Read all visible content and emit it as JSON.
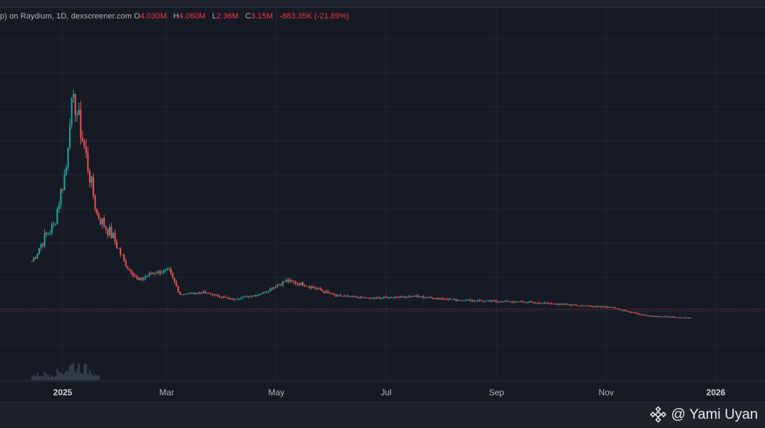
{
  "legend": {
    "symbol": "p) on Raydium, 1D, dexscreener.com",
    "o_label": "O",
    "o_value": "4.030M",
    "h_label": "H",
    "h_value": "4.060M",
    "l_label": "L",
    "l_value": "2.36M",
    "c_label": "C",
    "c_value": "3.15M",
    "change": "-883.35K (-21.89%)"
  },
  "time_axis": {
    "ticks": [
      "2025",
      "Mar",
      "May",
      "Jul",
      "Sep",
      "Nov",
      "2026"
    ]
  },
  "watermark": {
    "text": "@ Yami Uyan",
    "icon": "binance-logo-icon"
  },
  "colors": {
    "up": "#26a69a",
    "down": "#ef5350",
    "background": "#161a25",
    "grid": "#222632",
    "price_line": "#f23645"
  },
  "chart_data": {
    "type": "candlestick",
    "interval": "1D",
    "x_axis": "date",
    "y_axis_labels_visible": false,
    "grid": true,
    "last_price_line": true,
    "key_points": [
      {
        "date": "2024-12-15",
        "value": 2.0
      },
      {
        "date": "2024-12-22",
        "value": 2.6
      },
      {
        "date": "2024-12-27",
        "value": 2.9
      },
      {
        "date": "2025-01-03",
        "value": 4.4
      },
      {
        "date": "2025-01-05",
        "value": 5.8
      },
      {
        "date": "2025-01-08",
        "value": 6.0
      },
      {
        "date": "2025-01-13",
        "value": 4.9
      },
      {
        "date": "2025-01-20",
        "value": 3.2
      },
      {
        "date": "2025-01-29",
        "value": 2.6
      },
      {
        "date": "2025-02-05",
        "value": 1.9
      },
      {
        "date": "2025-02-12",
        "value": 1.5
      },
      {
        "date": "2025-02-20",
        "value": 1.7
      },
      {
        "date": "2025-03-01",
        "value": 1.75
      },
      {
        "date": "2025-03-07",
        "value": 1.15
      },
      {
        "date": "2025-03-20",
        "value": 1.2
      },
      {
        "date": "2025-04-05",
        "value": 1.02
      },
      {
        "date": "2025-04-20",
        "value": 1.15
      },
      {
        "date": "2025-05-05",
        "value": 1.5
      },
      {
        "date": "2025-05-15",
        "value": 1.4
      },
      {
        "date": "2025-06-01",
        "value": 1.12
      },
      {
        "date": "2025-06-20",
        "value": 1.05
      },
      {
        "date": "2025-07-15",
        "value": 1.1
      },
      {
        "date": "2025-08-10",
        "value": 1.0
      },
      {
        "date": "2025-09-15",
        "value": 0.95
      },
      {
        "date": "2025-10-20",
        "value": 0.85
      },
      {
        "date": "2025-11-01",
        "value": 0.82
      },
      {
        "date": "2025-11-20",
        "value": 0.6
      },
      {
        "date": "2025-12-15",
        "value": 0.55
      }
    ],
    "last_price": 0.55,
    "ylim": [
      0,
      7
    ]
  }
}
